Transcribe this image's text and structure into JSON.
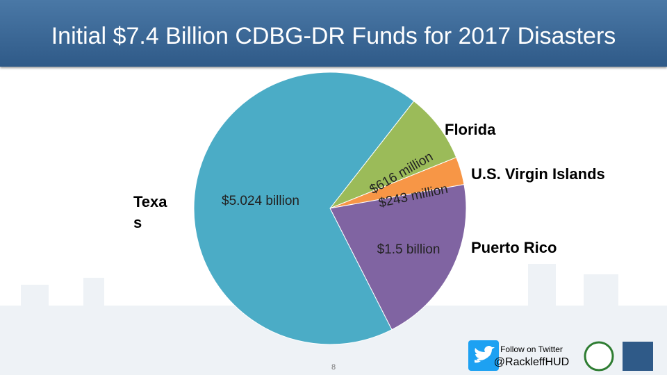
{
  "chart_data": {
    "type": "pie",
    "title": "Initial $7.4 Billion CDBG-DR Funds for 2017 Disasters",
    "categories": [
      "Texas",
      "Florida",
      "U.S. Virgin Islands",
      "Puerto Rico"
    ],
    "values": [
      5024,
      616,
      243,
      1500
    ],
    "value_labels": [
      "$5.024 billion",
      "$616 million",
      "$243 million",
      "$1.5 billion"
    ],
    "colors": [
      "#4bacc6",
      "#9bbb59",
      "#f79646",
      "#8064a2"
    ]
  },
  "footer": {
    "follow": "Follow on Twitter",
    "handle": "@RackleffHUD",
    "page": "8"
  }
}
